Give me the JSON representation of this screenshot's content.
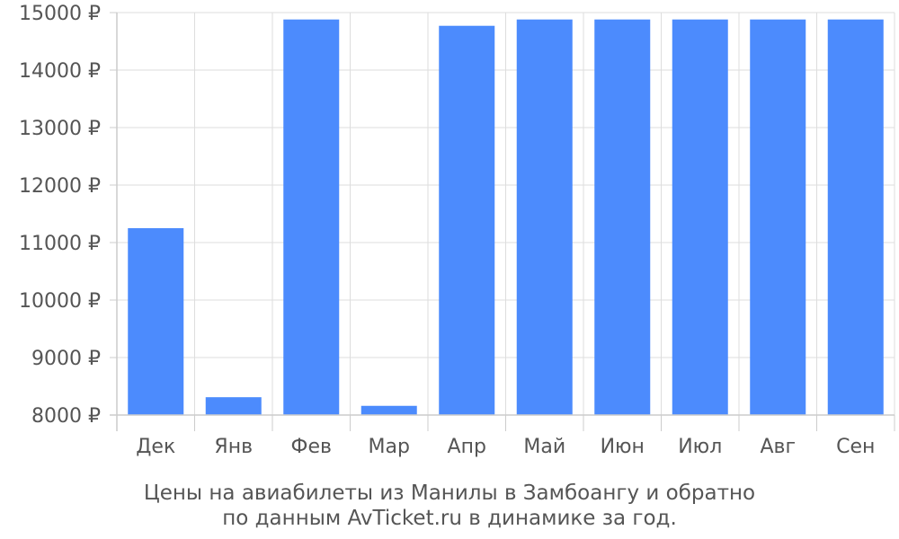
{
  "chart_data": {
    "type": "bar",
    "categories": [
      "Дек",
      "Янв",
      "Фев",
      "Мар",
      "Апр",
      "Май",
      "Июн",
      "Июл",
      "Авг",
      "Сен"
    ],
    "values": [
      11250,
      8310,
      14880,
      8160,
      14770,
      14880,
      14880,
      14880,
      14880,
      14880
    ],
    "y_ticks": [
      "8000 ₽",
      "9000 ₽",
      "10000 ₽",
      "11000 ₽",
      "12000 ₽",
      "13000 ₽",
      "14000 ₽",
      "15000 ₽"
    ],
    "ylim": [
      8000,
      15000
    ],
    "grid": true,
    "bar_color": "#4c8bfd",
    "caption_lines": [
      "Цены на авиабилеты из Манилы в Замбоангу и обратно",
      "по данным AvTicket.ru в динамике за год."
    ]
  }
}
